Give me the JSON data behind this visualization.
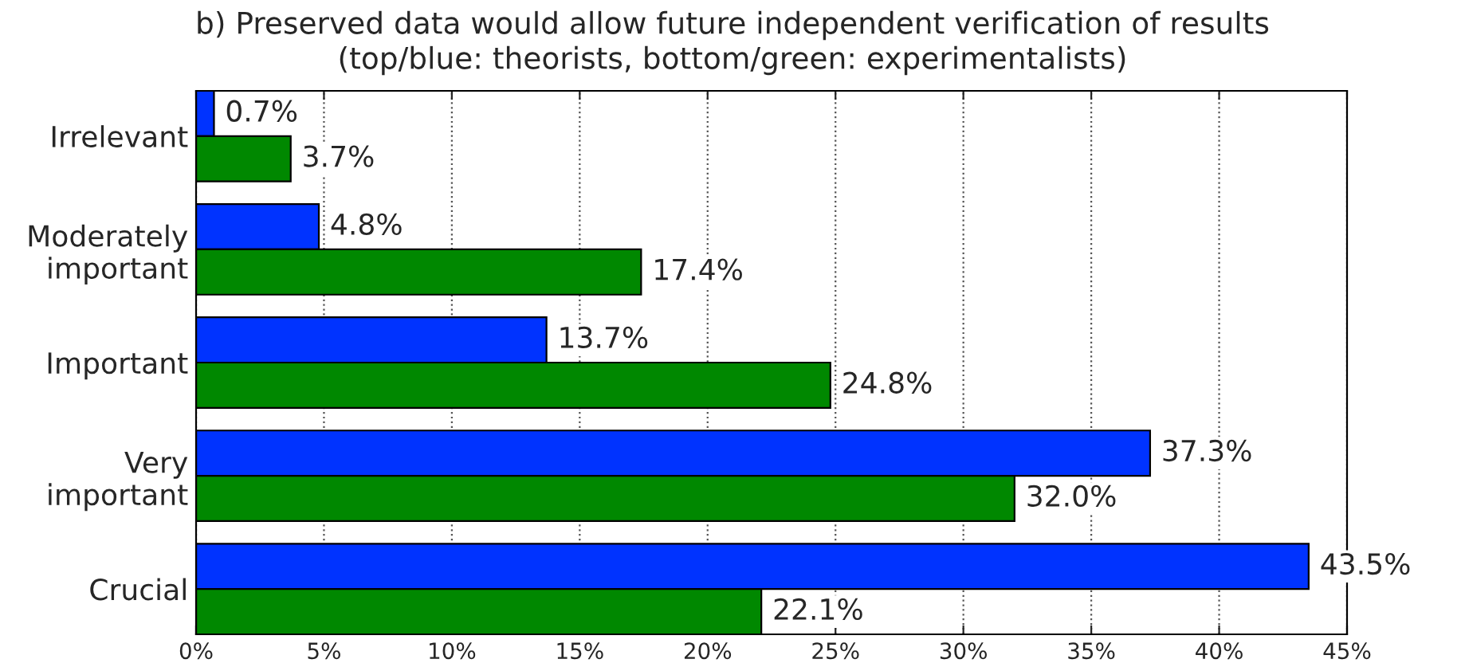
{
  "chart_data": {
    "type": "bar",
    "orientation": "horizontal",
    "title": "b) Preserved data would allow future independent verification of results",
    "subtitle": "(top/blue: theorists, bottom/green: experimentalists)",
    "categories": [
      "Irrelevant",
      "Moderately\nimportant",
      "Important",
      "Very\nimportant",
      "Crucial"
    ],
    "series": [
      {
        "color": "#0033ff",
        "values": [
          0.7,
          4.8,
          13.7,
          37.3,
          43.5
        ],
        "value_labels": [
          "0.7%",
          "4.8%",
          "13.7%",
          "37.3%",
          "43.5%"
        ]
      },
      {
        "color": "#008800",
        "values": [
          3.7,
          17.4,
          24.8,
          32.0,
          22.1
        ],
        "value_labels": [
          "3.7%",
          "17.4%",
          "24.8%",
          "32.0%",
          "22.1%"
        ]
      }
    ],
    "xlim": [
      0,
      45
    ],
    "xticks": [
      {
        "value": 0,
        "label": "0%"
      },
      {
        "value": 5,
        "label": "5%"
      },
      {
        "value": 10,
        "label": "10%"
      },
      {
        "value": 15,
        "label": "15%"
      },
      {
        "value": 20,
        "label": "20%"
      },
      {
        "value": 25,
        "label": "25%"
      },
      {
        "value": 30,
        "label": "30%"
      },
      {
        "value": 35,
        "label": "35%"
      },
      {
        "value": 40,
        "label": "40%"
      },
      {
        "value": 45,
        "label": "45%"
      }
    ],
    "grid": "x"
  }
}
